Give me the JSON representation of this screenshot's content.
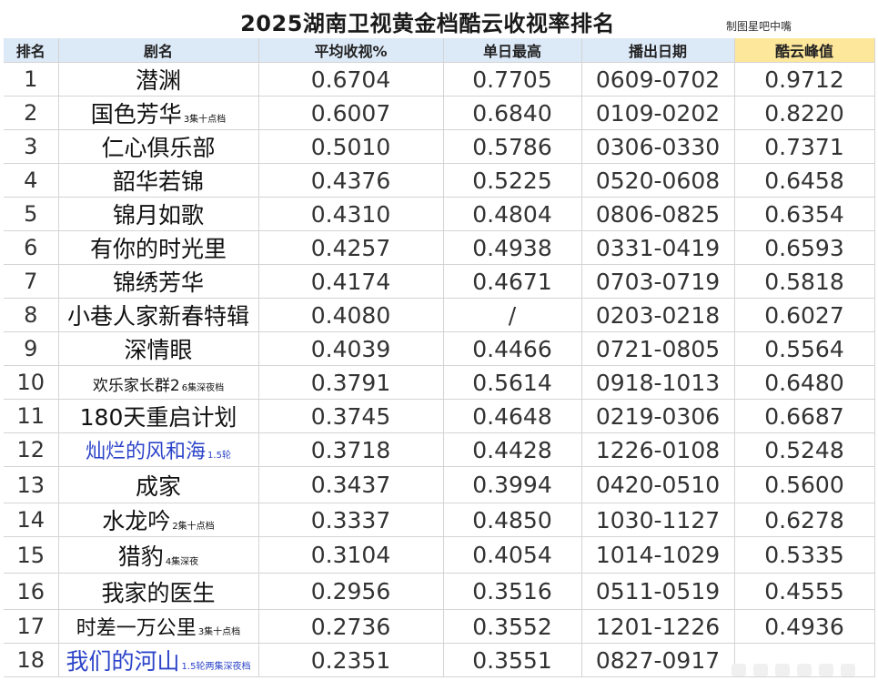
{
  "title": "2025湖南卫视黄金档酷云收视率排名",
  "credit": "制图星吧中嘴",
  "headers": {
    "rank": "排名",
    "name": "剧名",
    "avg": "平均收视%",
    "daily_high": "单日最高",
    "air_date": "播出日期",
    "peak": "酷云峰值"
  },
  "rows": [
    {
      "rank": "1",
      "name": "潜渊",
      "note": "",
      "avg": "0.6704",
      "high": "0.7705",
      "date": "0609-0702",
      "peak": "0.9712",
      "blue": false
    },
    {
      "rank": "2",
      "name": "国色芳华",
      "note": "3集十点档",
      "avg": "0.6007",
      "high": "0.6840",
      "date": "0109-0202",
      "peak": "0.8220",
      "blue": false
    },
    {
      "rank": "3",
      "name": "仁心俱乐部",
      "note": "",
      "avg": "0.5010",
      "high": "0.5786",
      "date": "0306-0330",
      "peak": "0.7371",
      "blue": false
    },
    {
      "rank": "4",
      "name": "韶华若锦",
      "note": "",
      "avg": "0.4376",
      "high": "0.5225",
      "date": "0520-0608",
      "peak": "0.6458",
      "blue": false
    },
    {
      "rank": "5",
      "name": "锦月如歌",
      "note": "",
      "avg": "0.4310",
      "high": "0.4804",
      "date": "0806-0825",
      "peak": "0.6354",
      "blue": false
    },
    {
      "rank": "6",
      "name": "有你的时光里",
      "note": "",
      "avg": "0.4257",
      "high": "0.4938",
      "date": "0331-0419",
      "peak": "0.6593",
      "blue": false
    },
    {
      "rank": "7",
      "name": "锦绣芳华",
      "note": "",
      "avg": "0.4174",
      "high": "0.4671",
      "date": "0703-0719",
      "peak": "0.5818",
      "blue": false
    },
    {
      "rank": "8",
      "name": "小巷人家新春特辑",
      "note": "",
      "avg": "0.4080",
      "high": "/",
      "date": "0203-0218",
      "peak": "0.6027",
      "blue": false
    },
    {
      "rank": "9",
      "name": "深情眼",
      "note": "",
      "avg": "0.4039",
      "high": "0.4466",
      "date": "0721-0805",
      "peak": "0.5564",
      "blue": false
    },
    {
      "rank": "10",
      "name": "欢乐家长群2",
      "note": "6集深夜档",
      "avg": "0.3791",
      "high": "0.5614",
      "date": "0918-1013",
      "peak": "0.6480",
      "blue": false
    },
    {
      "rank": "11",
      "name": "180天重启计划",
      "note": "",
      "avg": "0.3745",
      "high": "0.4648",
      "date": "0219-0306",
      "peak": "0.6687",
      "blue": false
    },
    {
      "rank": "12",
      "name": "灿烂的风和海",
      "note": "1.5轮",
      "avg": "0.3718",
      "high": "0.4428",
      "date": "1226-0108",
      "peak": "0.5248",
      "blue": true
    },
    {
      "rank": "13",
      "name": "成家",
      "note": "",
      "avg": "0.3437",
      "high": "0.3994",
      "date": "0420-0510",
      "peak": "0.5600",
      "blue": false
    },
    {
      "rank": "14",
      "name": "水龙吟",
      "note": "2集十点档",
      "avg": "0.3337",
      "high": "0.4850",
      "date": "1030-1127",
      "peak": "0.6278",
      "blue": false
    },
    {
      "rank": "15",
      "name": "猎豹",
      "note": "4集深夜",
      "avg": "0.3104",
      "high": "0.4054",
      "date": "1014-1029",
      "peak": "0.5335",
      "blue": false
    },
    {
      "rank": "16",
      "name": "我家的医生",
      "note": "",
      "avg": "0.2956",
      "high": "0.3516",
      "date": "0511-0519",
      "peak": "0.4555",
      "blue": false
    },
    {
      "rank": "17",
      "name": "时差一万公里",
      "note": "3集十点档",
      "avg": "0.2736",
      "high": "0.3552",
      "date": "1201-1226",
      "peak": "0.4936",
      "blue": false
    },
    {
      "rank": "18",
      "name": "我们的河山",
      "note": "1.5轮两集深夜档",
      "avg": "0.2351",
      "high": "0.3551",
      "date": "0827-0917",
      "peak": "",
      "blue": true
    }
  ]
}
